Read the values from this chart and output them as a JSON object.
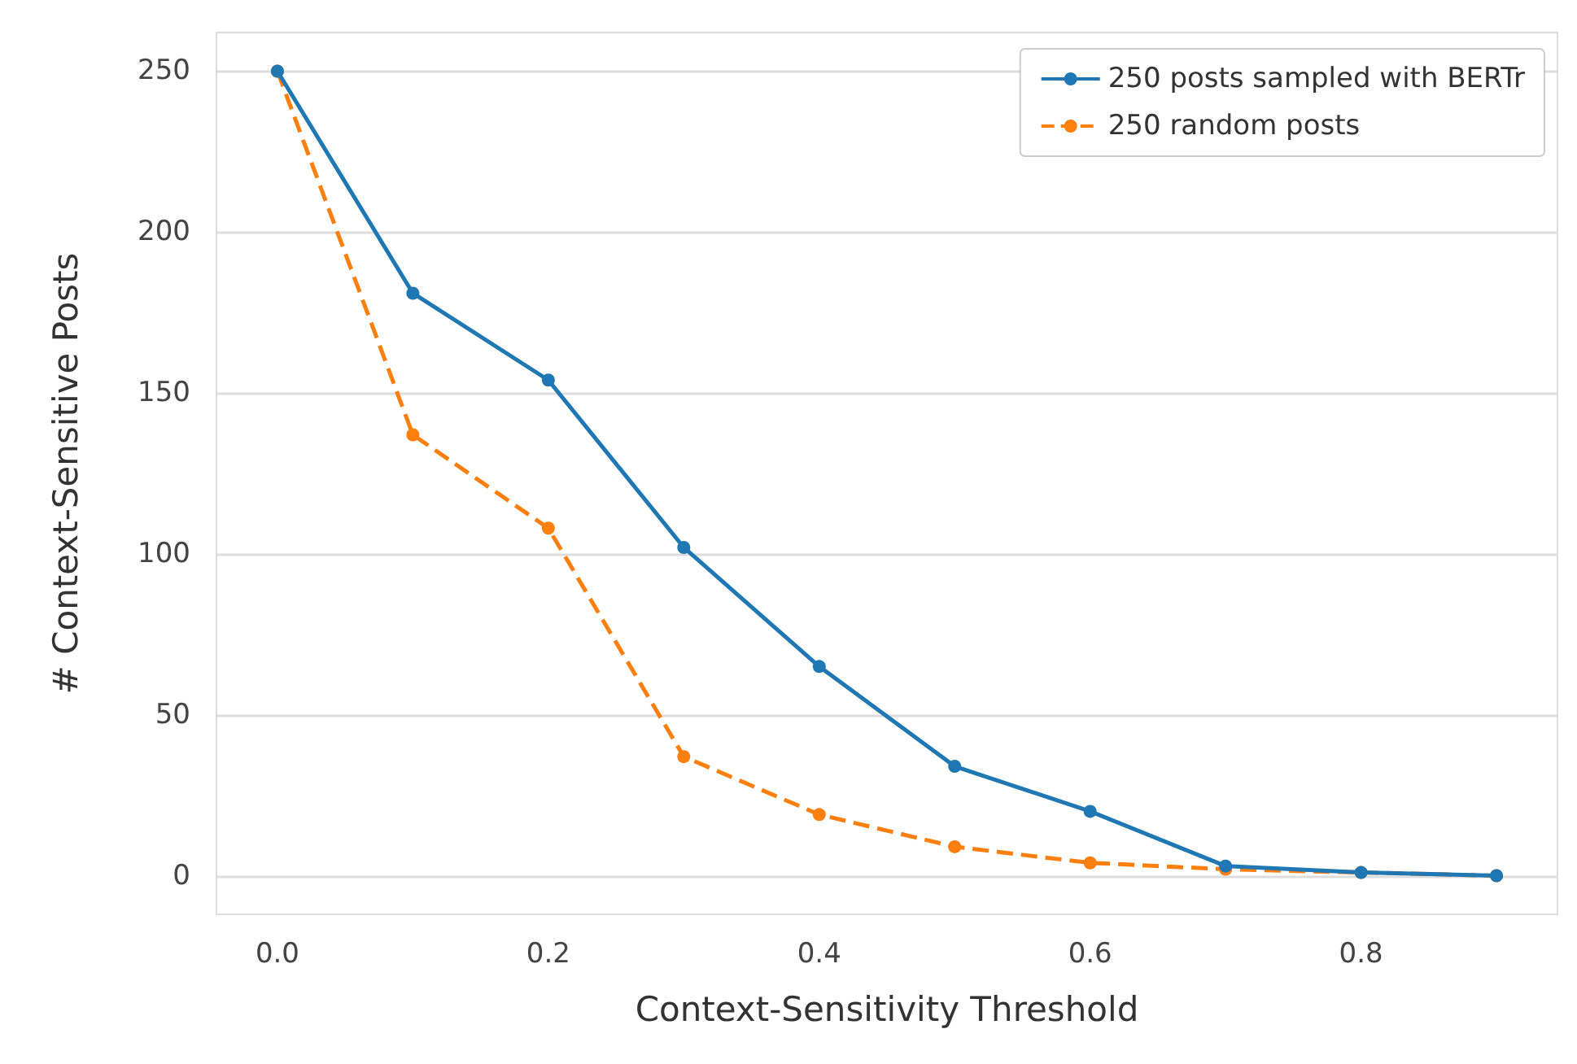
{
  "chart_data": {
    "type": "line",
    "xlabel": "Context-Sensitivity Threshold",
    "ylabel": "# Context-Sensitive Posts",
    "x": [
      0,
      0.1,
      0.2,
      0.3,
      0.4,
      0.5,
      0.6,
      0.7,
      0.8,
      0.9
    ],
    "series": [
      {
        "name": "250 posts sampled with BERTr",
        "color": "#1f77b4",
        "line_style": "solid",
        "values": [
          250,
          181,
          154,
          102,
          65,
          34,
          20,
          3,
          1,
          0
        ]
      },
      {
        "name": "250 random posts",
        "color": "#ff7f0e",
        "line_style": "dashed",
        "values": [
          250,
          137,
          108,
          37,
          19,
          9,
          4,
          2,
          1,
          0
        ]
      }
    ],
    "xlim": [
      -0.045,
      0.945
    ],
    "xticks": [
      {
        "value": 0,
        "label": "0.0"
      },
      {
        "value": 0.2,
        "label": "0.2"
      },
      {
        "value": 0.4,
        "label": "0.4"
      },
      {
        "value": 0.6,
        "label": "0.6"
      },
      {
        "value": 0.8,
        "label": "0.8"
      }
    ],
    "ylim": [
      -12,
      262
    ],
    "yticks": [
      0,
      50,
      100,
      150,
      200,
      250
    ],
    "grid": "y",
    "legend": "top right",
    "marker": "circle"
  }
}
